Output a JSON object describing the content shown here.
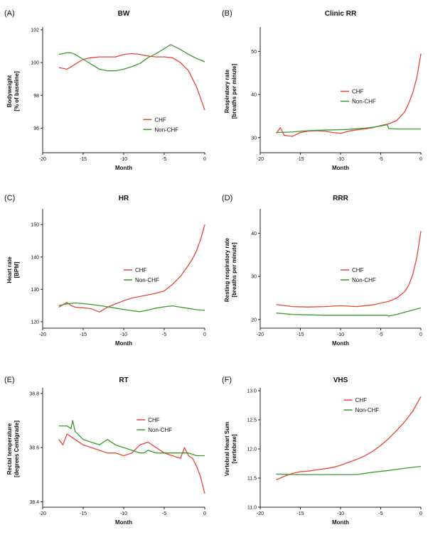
{
  "series_colors": {
    "CHF": "#e8443a",
    "Non-CHF": "#3a9a2e"
  },
  "chart_data": [
    {
      "panel": "(A)",
      "type": "line",
      "title": "BW",
      "xlabel": "Month",
      "ylabel": [
        "Bodyweight",
        "[% of baseline]"
      ],
      "xlim": [
        -20,
        0
      ],
      "ylim": [
        94.5,
        102
      ],
      "xticks": [
        -20,
        -15,
        -10,
        -5,
        0
      ],
      "yticks": [
        96,
        98,
        100,
        102
      ],
      "legend": "lower-right",
      "series": [
        {
          "name": "CHF",
          "x": [
            -18,
            -17,
            -16,
            -15,
            -14,
            -13,
            -12,
            -11,
            -10,
            -9,
            -8,
            -7,
            -6,
            -5,
            -4,
            -3,
            -2,
            -1,
            -0.5,
            0
          ],
          "y": [
            99.7,
            99.6,
            99.9,
            100.2,
            100.3,
            100.35,
            100.35,
            100.35,
            100.5,
            100.55,
            100.5,
            100.4,
            100.35,
            100.35,
            100.3,
            100.0,
            99.5,
            98.5,
            97.8,
            97.1
          ]
        },
        {
          "name": "Non-CHF",
          "x": [
            -18,
            -17,
            -16.5,
            -16,
            -15,
            -14,
            -13,
            -12,
            -11,
            -10,
            -9,
            -8,
            -7,
            -6,
            -5,
            -4.2,
            -3,
            -2,
            -1,
            0
          ],
          "y": [
            100.5,
            100.6,
            100.6,
            100.5,
            100.2,
            99.9,
            99.6,
            99.5,
            99.5,
            99.6,
            99.75,
            99.95,
            100.3,
            100.55,
            100.85,
            101.1,
            100.8,
            100.5,
            100.25,
            100.05
          ]
        }
      ]
    },
    {
      "panel": "(B)",
      "type": "line",
      "title": "Clinic RR",
      "xlabel": "Month",
      "ylabel": [
        "Respiratory rate",
        "[breaths per minute]"
      ],
      "xlim": [
        -20,
        0
      ],
      "ylim": [
        26.5,
        55
      ],
      "xticks": [
        -20,
        -15,
        -10,
        -5,
        0
      ],
      "yticks": [
        30,
        40,
        50
      ],
      "legend": "center-right",
      "series": [
        {
          "name": "CHF",
          "x": [
            -18,
            -17.5,
            -17,
            -16,
            -15,
            -14,
            -13,
            -12,
            -11,
            -10,
            -9,
            -8,
            -7,
            -6,
            -5,
            -4,
            -3,
            -2,
            -1.5,
            -1,
            -0.5,
            0
          ],
          "y": [
            31.0,
            32.3,
            30.5,
            30.3,
            31.2,
            31.5,
            31.6,
            31.5,
            31.2,
            31.0,
            31.5,
            31.8,
            32.0,
            32.3,
            32.8,
            33.2,
            34.0,
            36.0,
            38.0,
            40.5,
            44.0,
            49.5
          ]
        },
        {
          "name": "Non-CHF",
          "x": [
            -18,
            -16,
            -15,
            -13,
            -11,
            -9,
            -7,
            -6,
            -5,
            -4.2,
            -4,
            -3,
            -1,
            0
          ],
          "y": [
            31.2,
            31.3,
            31.5,
            31.7,
            31.8,
            31.9,
            32.2,
            32.4,
            32.7,
            33.0,
            32.1,
            32.0,
            32.0,
            32.0
          ]
        }
      ]
    },
    {
      "panel": "(C)",
      "type": "line",
      "title": "HR",
      "xlabel": "Month",
      "ylabel": [
        "Heart rate",
        "[BPM]"
      ],
      "xlim": [
        -20,
        0
      ],
      "ylim": [
        118,
        154
      ],
      "xticks": [
        -20,
        -15,
        -10,
        -5,
        0
      ],
      "yticks": [
        120,
        130,
        140,
        150
      ],
      "legend": "center-right",
      "series": [
        {
          "name": "CHF",
          "x": [
            -18,
            -17,
            -16.5,
            -16,
            -15,
            -14,
            -13,
            -12,
            -11,
            -10,
            -9,
            -8,
            -7,
            -6,
            -5,
            -4,
            -3,
            -2,
            -1.5,
            -1,
            -0.5,
            0
          ],
          "y": [
            124.5,
            126.0,
            125.0,
            124.5,
            124.3,
            124.0,
            123.0,
            124.5,
            125.5,
            126.5,
            127.3,
            127.8,
            128.3,
            128.8,
            129.5,
            131.5,
            134.0,
            137.5,
            139.5,
            142.0,
            145.5,
            150.0
          ]
        },
        {
          "name": "Non-CHF",
          "x": [
            -18,
            -17,
            -16,
            -15,
            -14,
            -13,
            -12,
            -11,
            -10,
            -9,
            -8,
            -7,
            -6,
            -5,
            -4,
            -3,
            -2,
            -1,
            0
          ],
          "y": [
            125.0,
            125.5,
            125.8,
            125.6,
            125.3,
            125.0,
            124.6,
            124.2,
            123.8,
            123.4,
            123.1,
            123.6,
            124.2,
            124.6,
            124.9,
            124.5,
            124.1,
            123.7,
            123.5
          ]
        }
      ]
    },
    {
      "panel": "(D)",
      "type": "line",
      "title": "RRR",
      "xlabel": "Month",
      "ylabel": [
        "Resting respiratory rate",
        "[breaths per minute]"
      ],
      "xlim": [
        -20,
        0
      ],
      "ylim": [
        18,
        45
      ],
      "xticks": [
        -20,
        -15,
        -10,
        -5,
        0
      ],
      "yticks": [
        20,
        30,
        40
      ],
      "legend": "center-right",
      "series": [
        {
          "name": "CHF",
          "x": [
            -18,
            -16,
            -14,
            -12,
            -10,
            -8,
            -6,
            -5,
            -4,
            -3,
            -2,
            -1.5,
            -1,
            -0.5,
            0
          ],
          "y": [
            23.5,
            23.0,
            22.9,
            23.0,
            23.2,
            23.0,
            23.4,
            23.8,
            24.2,
            25.0,
            26.5,
            28.0,
            30.5,
            34.5,
            40.5
          ]
        },
        {
          "name": "Non-CHF",
          "x": [
            -18,
            -16,
            -14,
            -12,
            -10,
            -8,
            -6,
            -4.2,
            -4,
            -3,
            -2,
            -1,
            0
          ],
          "y": [
            21.5,
            21.2,
            21.1,
            21.0,
            21.0,
            21.0,
            21.0,
            21.0,
            20.8,
            21.2,
            21.7,
            22.2,
            22.7
          ]
        }
      ]
    },
    {
      "panel": "(E)",
      "type": "line",
      "title": "RT",
      "xlabel": "Month",
      "ylabel": [
        "Rectal temperature",
        "[degrees Centigrade]"
      ],
      "xlim": [
        -20,
        0
      ],
      "ylim": [
        38.38,
        38.81
      ],
      "xticks": [
        -20,
        -15,
        -10,
        -5,
        0
      ],
      "yticks": [
        38.4,
        38.6,
        38.8
      ],
      "legend": "top-right",
      "series": [
        {
          "name": "CHF",
          "x": [
            -18,
            -17.5,
            -17,
            -16.5,
            -16,
            -15,
            -14,
            -13,
            -12,
            -11,
            -10,
            -9,
            -8,
            -7,
            -6.5,
            -6,
            -5,
            -4,
            -3,
            -2.5,
            -2,
            -1.5,
            -1,
            -0.5,
            0
          ],
          "y": [
            38.63,
            38.61,
            38.65,
            38.64,
            38.63,
            38.61,
            38.6,
            38.59,
            38.58,
            38.58,
            38.57,
            38.58,
            38.61,
            38.62,
            38.61,
            38.6,
            38.58,
            38.57,
            38.56,
            38.6,
            38.57,
            38.56,
            38.53,
            38.49,
            38.43
          ]
        },
        {
          "name": "Non-CHF",
          "x": [
            -18,
            -17,
            -16.5,
            -16.3,
            -16,
            -15,
            -14,
            -13,
            -12,
            -11,
            -10,
            -9,
            -8,
            -7.5,
            -7,
            -6,
            -5,
            -4,
            -3,
            -2,
            -1,
            0
          ],
          "y": [
            38.68,
            38.68,
            38.67,
            38.7,
            38.66,
            38.63,
            38.62,
            38.61,
            38.63,
            38.61,
            38.6,
            38.59,
            38.58,
            38.58,
            38.59,
            38.58,
            38.58,
            38.58,
            38.58,
            38.58,
            38.57,
            38.57
          ]
        }
      ]
    },
    {
      "panel": "(F)",
      "type": "line",
      "title": "VHS",
      "xlabel": "Month",
      "ylabel": [
        "Vertebral Heart Sum",
        "[vertebrae]"
      ],
      "xlim": [
        -20,
        0
      ],
      "ylim": [
        11.0,
        13.0
      ],
      "xticks": [
        -20,
        -15,
        -10,
        -5,
        0
      ],
      "yticks": [
        11.0,
        11.5,
        12.0,
        12.5,
        13.0
      ],
      "legend": "top-left",
      "series": [
        {
          "name": "CHF",
          "x": [
            -18,
            -17,
            -16,
            -15,
            -14,
            -13,
            -12,
            -11,
            -10,
            -9,
            -8,
            -7,
            -6,
            -5,
            -4,
            -3,
            -2,
            -1,
            0
          ],
          "y": [
            11.47,
            11.53,
            11.58,
            11.61,
            11.62,
            11.64,
            11.66,
            11.68,
            11.72,
            11.77,
            11.82,
            11.88,
            11.96,
            12.06,
            12.18,
            12.32,
            12.47,
            12.65,
            12.9
          ]
        },
        {
          "name": "Non-CHF",
          "x": [
            -18,
            -16,
            -14,
            -12,
            -10,
            -8,
            -6,
            -4,
            -2,
            0
          ],
          "y": [
            11.57,
            11.56,
            11.56,
            11.56,
            11.56,
            11.56,
            11.6,
            11.63,
            11.67,
            11.7
          ]
        }
      ]
    }
  ]
}
